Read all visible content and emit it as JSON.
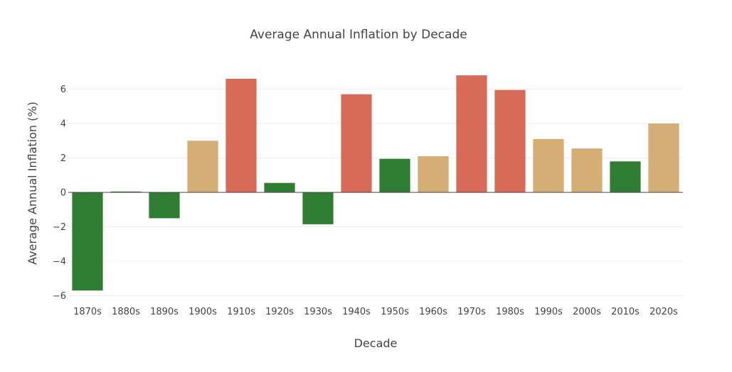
{
  "chart_data": {
    "type": "bar",
    "title": "Average Annual Inflation by Decade",
    "xlabel": "Decade",
    "ylabel": "Average Annual Inflation (%)",
    "categories": [
      "1870s",
      "1880s",
      "1890s",
      "1900s",
      "1910s",
      "1920s",
      "1930s",
      "1940s",
      "1950s",
      "1960s",
      "1970s",
      "1980s",
      "1990s",
      "2000s",
      "2010s",
      "2020s"
    ],
    "values": [
      -5.7,
      0.05,
      -1.5,
      3.0,
      6.6,
      0.55,
      -1.85,
      5.7,
      1.95,
      2.1,
      6.8,
      5.95,
      3.1,
      2.55,
      1.8,
      4.0
    ],
    "colors": [
      "#2e7d32",
      "#2e7d32",
      "#2e7d32",
      "#d4ae74",
      "#d86b58",
      "#2e7d32",
      "#2e7d32",
      "#d86b58",
      "#2e7d32",
      "#d4ae74",
      "#d86b58",
      "#d86b58",
      "#d4ae74",
      "#d4ae74",
      "#2e7d32",
      "#d4ae74"
    ],
    "ylim": [
      -6.2,
      7.5
    ],
    "yticks": [
      -6,
      -4,
      -2,
      0,
      2,
      4,
      6
    ],
    "ytick_labels": [
      "−6",
      "−4",
      "−2",
      "0",
      "2",
      "4",
      "6"
    ],
    "grid": true,
    "legend": false
  }
}
